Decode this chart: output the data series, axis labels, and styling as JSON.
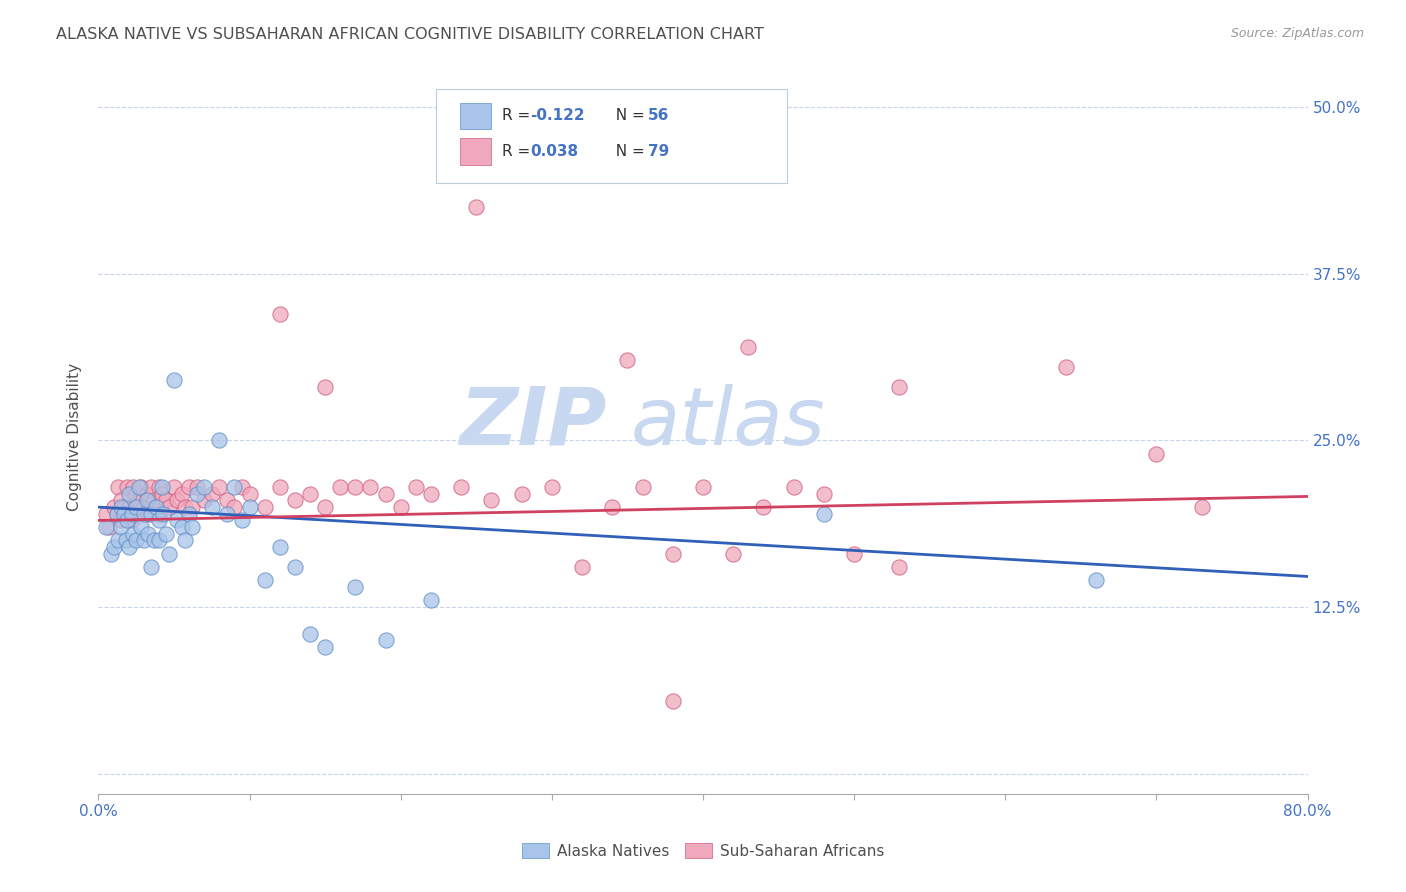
{
  "title": "ALASKA NATIVE VS SUBSAHARAN AFRICAN COGNITIVE DISABILITY CORRELATION CHART",
  "source": "Source: ZipAtlas.com",
  "ylabel": "Cognitive Disability",
  "right_yticks": [
    0.0,
    0.125,
    0.25,
    0.375,
    0.5
  ],
  "right_yticklabels": [
    "",
    "12.5%",
    "25.0%",
    "37.5%",
    "50.0%"
  ],
  "legend_label1": "Alaska Natives",
  "legend_label2": "Sub-Saharan Africans",
  "blue_color": "#A8C4E8",
  "pink_color": "#F0A8BC",
  "blue_edge_color": "#6090C8",
  "pink_edge_color": "#D06080",
  "blue_line_color": "#3060B8",
  "pink_line_color": "#D04060",
  "title_color": "#505050",
  "axis_label_color": "#4472C4",
  "watermark_color": "#C8D8F0",
  "background_color": "#FFFFFF",
  "plot_bg_color": "#FFFFFF",
  "grid_color": "#C8D4E8",
  "xlim": [
    0.0,
    0.8
  ],
  "ylim": [
    -0.015,
    0.52
  ],
  "blue_scatter_x": [
    0.005,
    0.008,
    0.01,
    0.012,
    0.013,
    0.015,
    0.015,
    0.017,
    0.018,
    0.019,
    0.02,
    0.02,
    0.022,
    0.023,
    0.025,
    0.025,
    0.027,
    0.028,
    0.03,
    0.03,
    0.032,
    0.033,
    0.035,
    0.035,
    0.037,
    0.038,
    0.04,
    0.04,
    0.042,
    0.043,
    0.045,
    0.047,
    0.05,
    0.052,
    0.055,
    0.057,
    0.06,
    0.062,
    0.065,
    0.07,
    0.075,
    0.08,
    0.085,
    0.09,
    0.095,
    0.1,
    0.11,
    0.12,
    0.13,
    0.14,
    0.15,
    0.17,
    0.19,
    0.22,
    0.48,
    0.66
  ],
  "blue_scatter_y": [
    0.185,
    0.165,
    0.17,
    0.195,
    0.175,
    0.2,
    0.185,
    0.195,
    0.175,
    0.19,
    0.21,
    0.17,
    0.195,
    0.18,
    0.2,
    0.175,
    0.215,
    0.185,
    0.195,
    0.175,
    0.205,
    0.18,
    0.155,
    0.195,
    0.175,
    0.2,
    0.19,
    0.175,
    0.215,
    0.195,
    0.18,
    0.165,
    0.295,
    0.19,
    0.185,
    0.175,
    0.195,
    0.185,
    0.21,
    0.215,
    0.2,
    0.25,
    0.195,
    0.215,
    0.19,
    0.2,
    0.145,
    0.17,
    0.155,
    0.105,
    0.095,
    0.14,
    0.1,
    0.13,
    0.195,
    0.145
  ],
  "pink_scatter_x": [
    0.005,
    0.007,
    0.01,
    0.012,
    0.013,
    0.015,
    0.015,
    0.017,
    0.018,
    0.019,
    0.02,
    0.022,
    0.023,
    0.025,
    0.025,
    0.027,
    0.028,
    0.03,
    0.032,
    0.033,
    0.035,
    0.037,
    0.038,
    0.04,
    0.04,
    0.042,
    0.045,
    0.047,
    0.05,
    0.052,
    0.055,
    0.057,
    0.06,
    0.062,
    0.065,
    0.07,
    0.075,
    0.08,
    0.085,
    0.09,
    0.095,
    0.1,
    0.11,
    0.12,
    0.13,
    0.14,
    0.15,
    0.16,
    0.17,
    0.18,
    0.19,
    0.2,
    0.21,
    0.22,
    0.24,
    0.26,
    0.28,
    0.3,
    0.32,
    0.34,
    0.36,
    0.38,
    0.4,
    0.42,
    0.44,
    0.46,
    0.48,
    0.5,
    0.25,
    0.35,
    0.15,
    0.12,
    0.43,
    0.53,
    0.64,
    0.7,
    0.73,
    0.53,
    0.38
  ],
  "pink_scatter_y": [
    0.195,
    0.185,
    0.2,
    0.195,
    0.215,
    0.205,
    0.19,
    0.2,
    0.195,
    0.215,
    0.2,
    0.19,
    0.215,
    0.21,
    0.195,
    0.205,
    0.215,
    0.2,
    0.21,
    0.195,
    0.215,
    0.205,
    0.2,
    0.215,
    0.195,
    0.21,
    0.205,
    0.2,
    0.215,
    0.205,
    0.21,
    0.2,
    0.215,
    0.2,
    0.215,
    0.205,
    0.21,
    0.215,
    0.205,
    0.2,
    0.215,
    0.21,
    0.2,
    0.215,
    0.205,
    0.21,
    0.2,
    0.215,
    0.215,
    0.215,
    0.21,
    0.2,
    0.215,
    0.21,
    0.215,
    0.205,
    0.21,
    0.215,
    0.155,
    0.2,
    0.215,
    0.165,
    0.215,
    0.165,
    0.2,
    0.215,
    0.21,
    0.165,
    0.425,
    0.31,
    0.29,
    0.345,
    0.32,
    0.29,
    0.305,
    0.24,
    0.2,
    0.155,
    0.055
  ],
  "blue_trend_x": [
    0.0,
    0.8
  ],
  "blue_trend_y": [
    0.2,
    0.148
  ],
  "pink_trend_x": [
    0.0,
    0.8
  ],
  "pink_trend_y": [
    0.19,
    0.208
  ]
}
